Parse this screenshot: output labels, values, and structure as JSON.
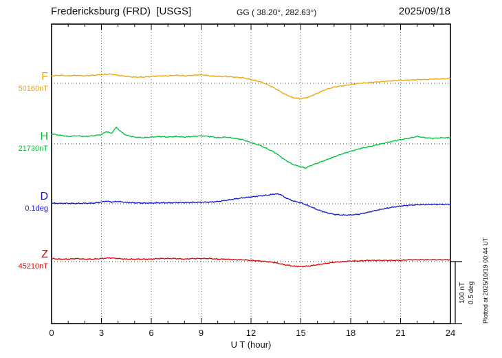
{
  "header": {
    "station": "Fredericksburg (FRD)  [USGS]",
    "coords": "GG ( 38.20°, 282.63°)",
    "date": "2025/09/18"
  },
  "axis": {
    "xlabel": "U T (hour)",
    "tick_labels": [
      "0",
      "3",
      "6",
      "9",
      "12",
      "15",
      "18",
      "21",
      "24"
    ],
    "tick_hours": [
      0,
      3,
      6,
      9,
      12,
      15,
      18,
      21,
      24
    ]
  },
  "scale_bar": {
    "label_nt": "100 nT",
    "label_deg": "0.5 deg"
  },
  "footer_note": "Plotted at 2025/10/19 00:44 UT",
  "chart_data": {
    "type": "line",
    "title": "Fredericksburg (FRD) [USGS] magnetogram 2025/09/18",
    "xlabel": "U T (hour)",
    "x_range": [
      0,
      24
    ],
    "grid": "dotted vertical every 3 hours, dotted baseline per trace",
    "legend_position": "left margin, one colored letter per trace",
    "scale": {
      "nT_per_div": 100,
      "deg_per_div": 0.5
    },
    "series": [
      {
        "id": "F",
        "label": "F",
        "baseline_label": "50160nT",
        "baseline_value": 50160,
        "units": "nT",
        "color": "#f0a30a",
        "points": [
          [
            0,
            12
          ],
          [
            0.5,
            13
          ],
          [
            1,
            12
          ],
          [
            1.5,
            13
          ],
          [
            2,
            12
          ],
          [
            2.5,
            13
          ],
          [
            3,
            14
          ],
          [
            3.5,
            15
          ],
          [
            4,
            13
          ],
          [
            4.5,
            11
          ],
          [
            5,
            10
          ],
          [
            5.5,
            10
          ],
          [
            6,
            11
          ],
          [
            6.5,
            12
          ],
          [
            7,
            12
          ],
          [
            7.5,
            13
          ],
          [
            8,
            12
          ],
          [
            8.5,
            13
          ],
          [
            9,
            14
          ],
          [
            9.5,
            12
          ],
          [
            10,
            11
          ],
          [
            10.5,
            11
          ],
          [
            11,
            10
          ],
          [
            11.5,
            9
          ],
          [
            12,
            6
          ],
          [
            12.5,
            3
          ],
          [
            13,
            -2
          ],
          [
            13.5,
            -9
          ],
          [
            14,
            -17
          ],
          [
            14.5,
            -23
          ],
          [
            15,
            -25
          ],
          [
            15.5,
            -22
          ],
          [
            16,
            -16
          ],
          [
            16.5,
            -10
          ],
          [
            17,
            -6
          ],
          [
            17.5,
            -4
          ],
          [
            18,
            -2
          ],
          [
            18.5,
            0
          ],
          [
            19,
            1
          ],
          [
            19.5,
            2
          ],
          [
            20,
            3
          ],
          [
            20.5,
            4
          ],
          [
            21,
            5
          ],
          [
            21.5,
            5
          ],
          [
            22,
            6
          ],
          [
            22.5,
            6
          ],
          [
            23,
            7
          ],
          [
            23.5,
            7
          ],
          [
            24,
            8
          ]
        ]
      },
      {
        "id": "H",
        "label": "H",
        "baseline_label": "21730nT",
        "baseline_value": 21730,
        "units": "nT",
        "color": "#00c13a",
        "points": [
          [
            0,
            16
          ],
          [
            0.5,
            14
          ],
          [
            1,
            12
          ],
          [
            1.5,
            13
          ],
          [
            2,
            12
          ],
          [
            2.5,
            13
          ],
          [
            3,
            15
          ],
          [
            3.3,
            20
          ],
          [
            3.6,
            17
          ],
          [
            3.9,
            27
          ],
          [
            4.2,
            19
          ],
          [
            4.5,
            14
          ],
          [
            5,
            11
          ],
          [
            5.5,
            10
          ],
          [
            6,
            11
          ],
          [
            6.5,
            12
          ],
          [
            7,
            11
          ],
          [
            7.5,
            12
          ],
          [
            8,
            11
          ],
          [
            8.5,
            12
          ],
          [
            9,
            13
          ],
          [
            9.5,
            12
          ],
          [
            10,
            10
          ],
          [
            10.5,
            11
          ],
          [
            11,
            9
          ],
          [
            11.5,
            7
          ],
          [
            12,
            2
          ],
          [
            12.5,
            -2
          ],
          [
            13,
            -8
          ],
          [
            13.5,
            -15
          ],
          [
            14,
            -25
          ],
          [
            14.5,
            -33
          ],
          [
            15,
            -37
          ],
          [
            15.3,
            -39
          ],
          [
            15.6,
            -35
          ],
          [
            16,
            -31
          ],
          [
            16.5,
            -26
          ],
          [
            17,
            -21
          ],
          [
            17.5,
            -16
          ],
          [
            18,
            -12
          ],
          [
            18.5,
            -8
          ],
          [
            19,
            -5
          ],
          [
            19.5,
            -2
          ],
          [
            20,
            1
          ],
          [
            20.5,
            4
          ],
          [
            21,
            7
          ],
          [
            21.5,
            9
          ],
          [
            22,
            12
          ],
          [
            22.5,
            10
          ],
          [
            23,
            9
          ],
          [
            23.5,
            10
          ],
          [
            24,
            10
          ]
        ]
      },
      {
        "id": "D",
        "label": "D",
        "baseline_label": "0.1deg",
        "baseline_value": 0.1,
        "units": "deg",
        "color": "#1515d6",
        "points": [
          [
            0,
            0.005
          ],
          [
            0.5,
            0.003
          ],
          [
            1,
            0.004
          ],
          [
            1.5,
            0.003
          ],
          [
            2,
            0.004
          ],
          [
            2.5,
            0.005
          ],
          [
            3,
            0.014
          ],
          [
            3.3,
            0.022
          ],
          [
            3.6,
            0.014
          ],
          [
            4,
            0.019
          ],
          [
            4.5,
            0.011
          ],
          [
            5,
            0.008
          ],
          [
            5.5,
            0.006
          ],
          [
            6,
            0.006
          ],
          [
            6.5,
            0.008
          ],
          [
            7,
            0.008
          ],
          [
            7.5,
            0.01
          ],
          [
            8,
            0.01
          ],
          [
            8.5,
            0.011
          ],
          [
            9,
            0.012
          ],
          [
            9.5,
            0.014
          ],
          [
            10,
            0.018
          ],
          [
            10.5,
            0.028
          ],
          [
            11,
            0.038
          ],
          [
            11.5,
            0.048
          ],
          [
            12,
            0.055
          ],
          [
            12.5,
            0.063
          ],
          [
            13,
            0.07
          ],
          [
            13.5,
            0.08
          ],
          [
            13.8,
            0.074
          ],
          [
            14,
            0.054
          ],
          [
            14.5,
            0.024
          ],
          [
            15,
            0.008
          ],
          [
            15.5,
            -0.018
          ],
          [
            16,
            -0.048
          ],
          [
            16.5,
            -0.07
          ],
          [
            17,
            -0.085
          ],
          [
            17.5,
            -0.091
          ],
          [
            18,
            -0.09
          ],
          [
            18.5,
            -0.084
          ],
          [
            19,
            -0.07
          ],
          [
            19.5,
            -0.054
          ],
          [
            20,
            -0.04
          ],
          [
            20.5,
            -0.028
          ],
          [
            21,
            -0.018
          ],
          [
            21.5,
            -0.012
          ],
          [
            22,
            -0.008
          ],
          [
            22.5,
            -0.006
          ],
          [
            23,
            -0.005
          ],
          [
            23.5,
            -0.005
          ],
          [
            24,
            -0.004
          ]
        ]
      },
      {
        "id": "Z",
        "label": "Z",
        "baseline_label": "45210nT",
        "baseline_value": 45210,
        "units": "nT",
        "color": "#e00000",
        "points": [
          [
            0,
            5
          ],
          [
            0.5,
            4
          ],
          [
            1,
            4
          ],
          [
            1.5,
            5
          ],
          [
            2,
            4
          ],
          [
            2.5,
            4
          ],
          [
            3,
            5
          ],
          [
            3.5,
            6
          ],
          [
            4,
            5
          ],
          [
            4.5,
            4
          ],
          [
            5,
            4
          ],
          [
            5.5,
            4
          ],
          [
            6,
            4
          ],
          [
            6.5,
            5
          ],
          [
            7,
            5
          ],
          [
            7.5,
            5
          ],
          [
            8,
            4
          ],
          [
            8.5,
            5
          ],
          [
            9,
            5
          ],
          [
            9.5,
            5
          ],
          [
            10,
            4
          ],
          [
            10.5,
            4
          ],
          [
            11,
            3
          ],
          [
            11.5,
            3
          ],
          [
            12,
            2
          ],
          [
            12.5,
            1
          ],
          [
            13,
            0
          ],
          [
            13.5,
            -2
          ],
          [
            14,
            -5
          ],
          [
            14.5,
            -7
          ],
          [
            15,
            -8
          ],
          [
            15.5,
            -7
          ],
          [
            16,
            -5
          ],
          [
            16.5,
            -3
          ],
          [
            17,
            -1
          ],
          [
            17.5,
            0
          ],
          [
            18,
            1
          ],
          [
            18.5,
            1
          ],
          [
            19,
            2
          ],
          [
            19.5,
            2
          ],
          [
            20,
            2
          ],
          [
            20.5,
            2
          ],
          [
            21,
            2
          ],
          [
            21.5,
            3
          ],
          [
            22,
            3
          ],
          [
            22.5,
            3
          ],
          [
            23,
            3
          ],
          [
            23.5,
            3
          ],
          [
            24,
            3
          ]
        ]
      }
    ]
  }
}
